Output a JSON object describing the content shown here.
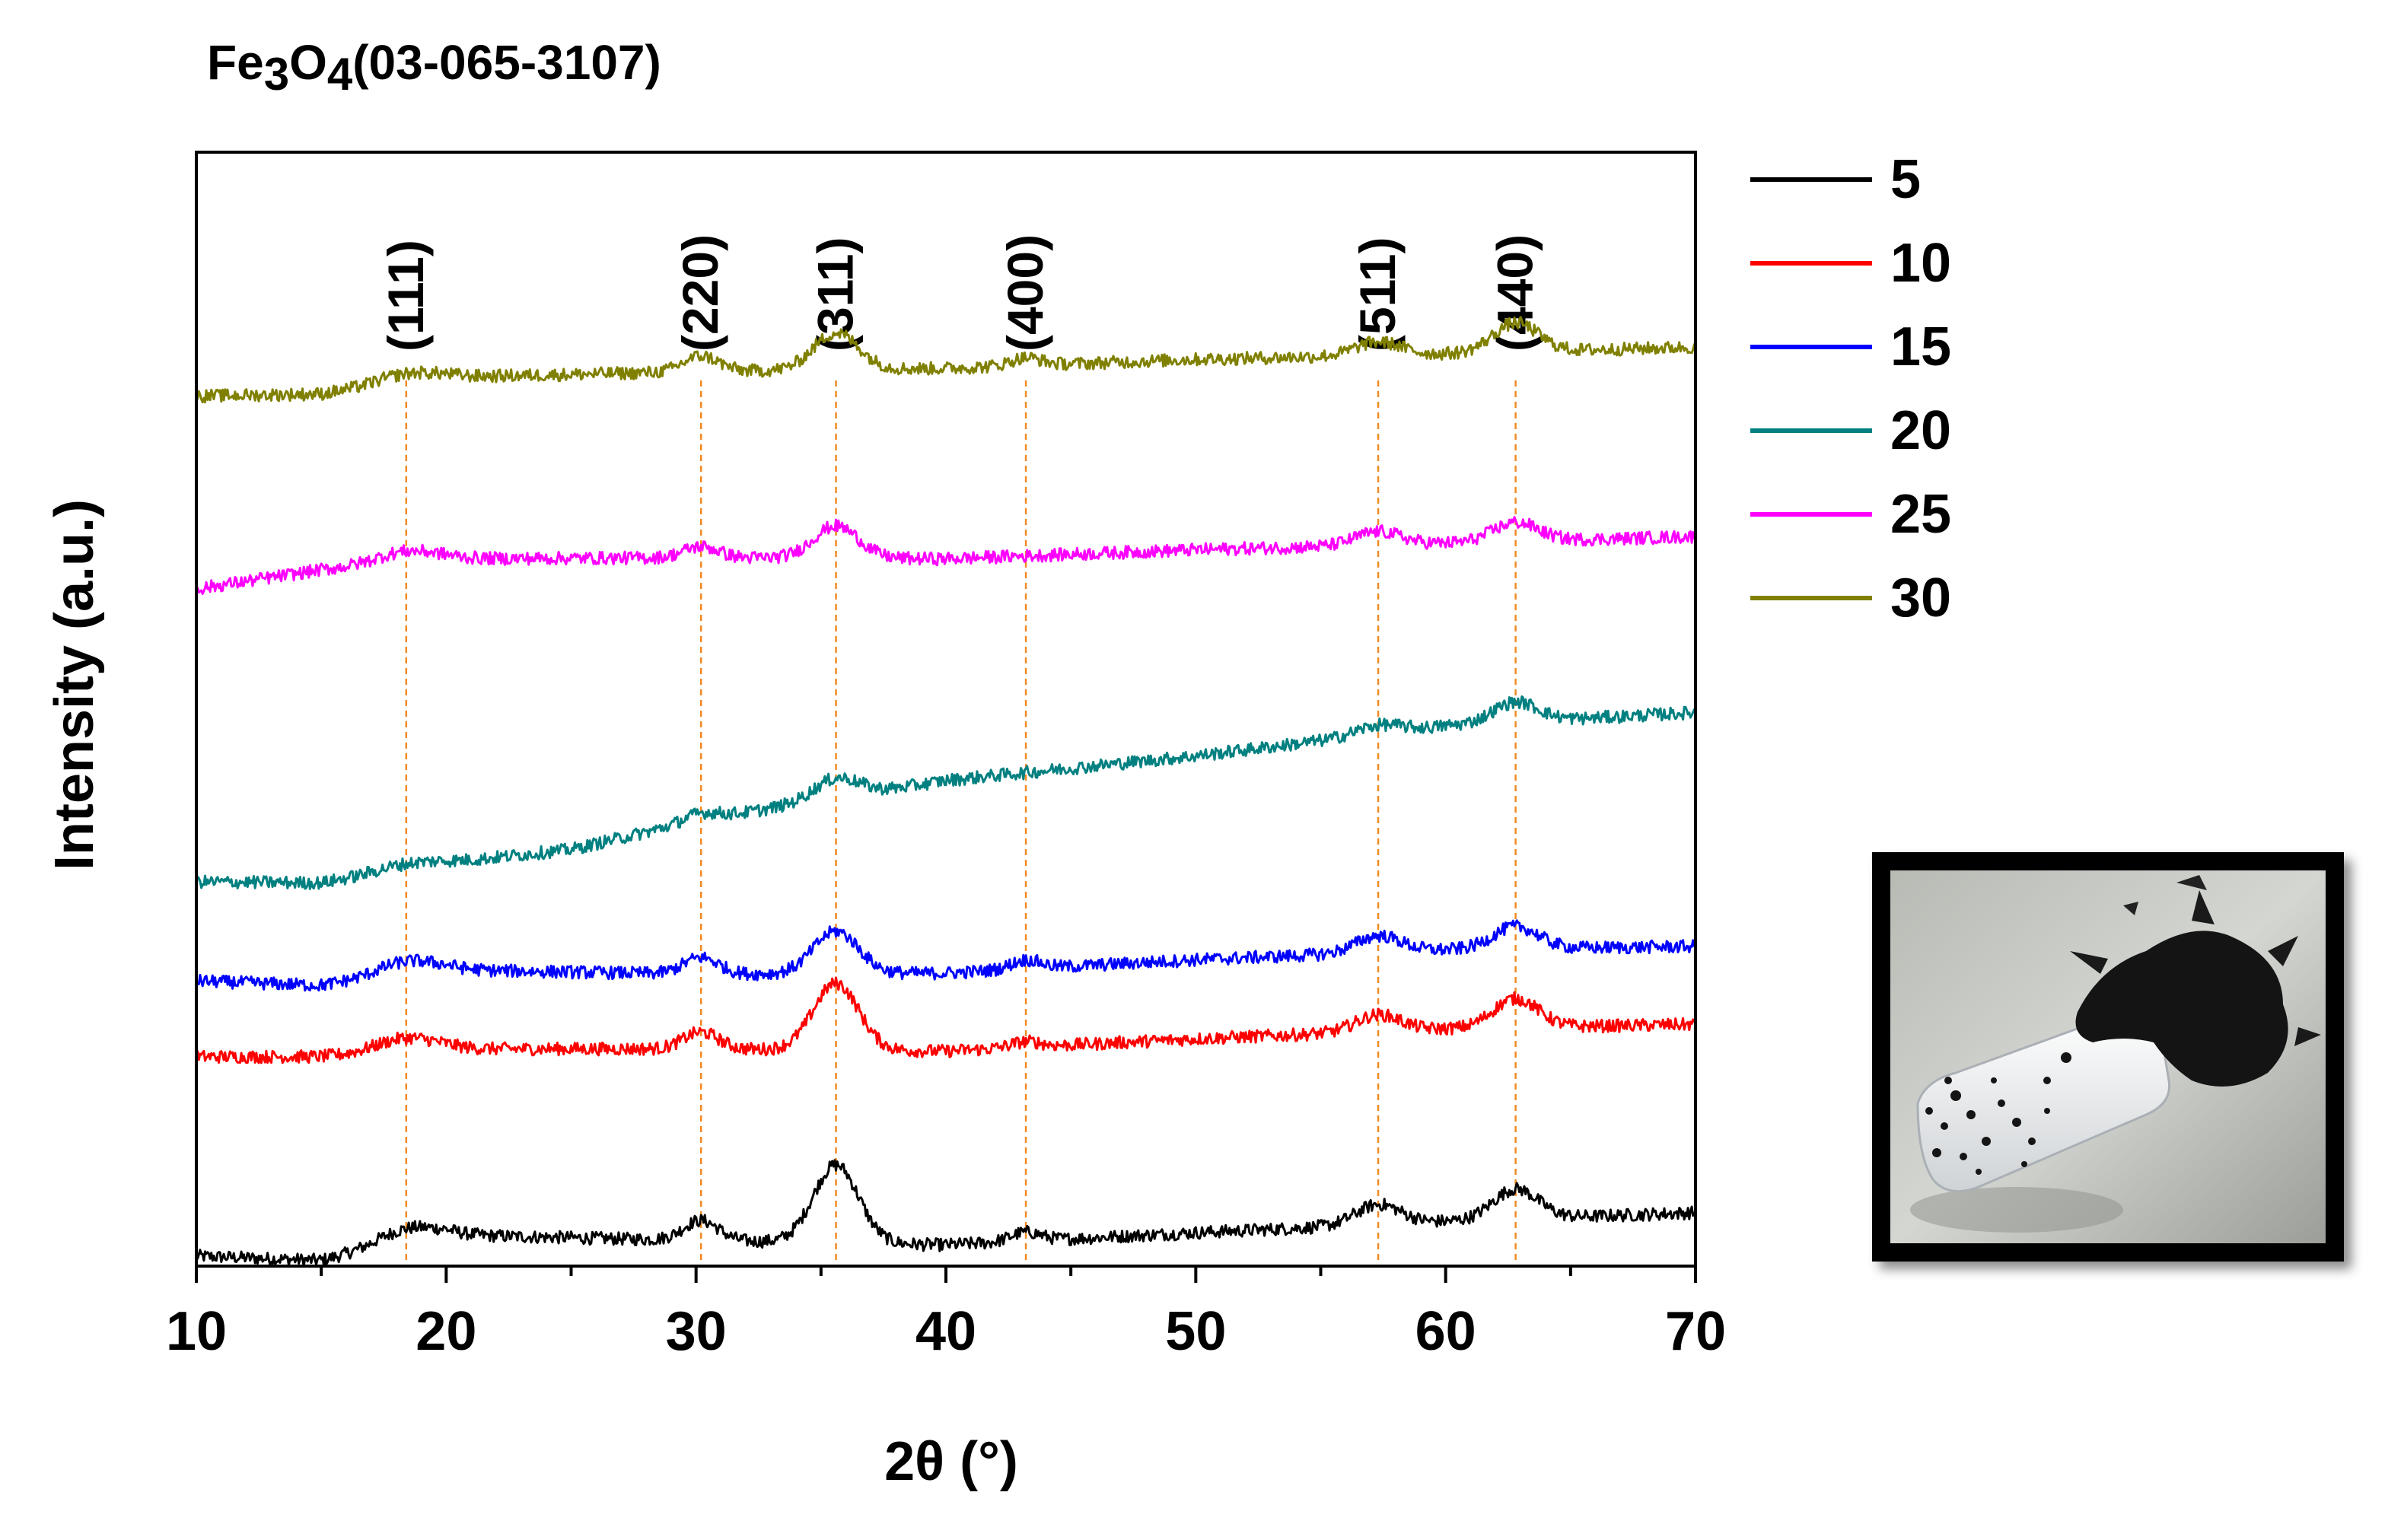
{
  "figure_title": {
    "base": "Fe",
    "sub1": "3",
    "mid": "O",
    "sub2": "4",
    "suffix": "(03-065-3107)"
  },
  "chart_data": {
    "type": "line",
    "title": "Fe3O4(03-065-3107)",
    "xlabel": "2θ (°)",
    "ylabel": "Intensity (a.u.)",
    "xlim": [
      10,
      70
    ],
    "xticks": [
      10,
      20,
      30,
      40,
      50,
      60,
      70
    ],
    "legend_position": "right",
    "grid": false,
    "reference_peaks": [
      {
        "label": "(111)",
        "two_theta": 18.4
      },
      {
        "label": "(220)",
        "two_theta": 30.2
      },
      {
        "label": "(311)",
        "two_theta": 35.6
      },
      {
        "label": "(400)",
        "two_theta": 43.2
      },
      {
        "label": "(511)",
        "two_theta": 57.3
      },
      {
        "label": "(440)",
        "two_theta": 62.8
      }
    ],
    "series": [
      {
        "name": "5",
        "color": "#000000",
        "baseline": [
          [
            10,
            0.9
          ],
          [
            15,
            0.5
          ],
          [
            20,
            2.8
          ],
          [
            30,
            2.3
          ],
          [
            40,
            1.9
          ],
          [
            50,
            3.0
          ],
          [
            60,
            4.0
          ],
          [
            70,
            4.8
          ]
        ],
        "peaks": [
          [
            18.4,
            1.3,
            1.2
          ],
          [
            30.2,
            1.8,
            0.7
          ],
          [
            35.6,
            7.0,
            0.9
          ],
          [
            43.2,
            0.8,
            0.6
          ],
          [
            57.3,
            1.8,
            0.9
          ],
          [
            62.8,
            2.7,
            0.9
          ]
        ]
      },
      {
        "name": "10",
        "color": "#ff0000",
        "baseline": [
          [
            10,
            18.8
          ],
          [
            15,
            18.8
          ],
          [
            20,
            19.5
          ],
          [
            30,
            19.5
          ],
          [
            40,
            19.3
          ],
          [
            50,
            20.4
          ],
          [
            60,
            21.3
          ],
          [
            70,
            21.7
          ]
        ],
        "peaks": [
          [
            18.4,
            1.2,
            1.2
          ],
          [
            30.2,
            1.5,
            0.7
          ],
          [
            35.6,
            6.0,
            0.9
          ],
          [
            43.2,
            0.5,
            0.6
          ],
          [
            57.3,
            1.5,
            0.9
          ],
          [
            62.8,
            2.6,
            0.9
          ]
        ]
      },
      {
        "name": "15",
        "color": "#0000ff",
        "baseline": [
          [
            10,
            25.6
          ],
          [
            15,
            25.2
          ],
          [
            20,
            26.6
          ],
          [
            30,
            26.2
          ],
          [
            40,
            26.3
          ],
          [
            50,
            27.5
          ],
          [
            60,
            28.4
          ],
          [
            70,
            28.7
          ]
        ],
        "peaks": [
          [
            18.4,
            1.2,
            1.2
          ],
          [
            30.2,
            1.5,
            0.7
          ],
          [
            35.6,
            3.8,
            0.9
          ],
          [
            43.2,
            0.8,
            0.6
          ],
          [
            57.3,
            1.5,
            0.9
          ],
          [
            62.8,
            2.0,
            0.9
          ]
        ]
      },
      {
        "name": "20",
        "color": "#008080",
        "baseline": [
          [
            10,
            34.5
          ],
          [
            15,
            34.4
          ],
          [
            20,
            36.2
          ],
          [
            25,
            37.4
          ],
          [
            30,
            40.0
          ],
          [
            35,
            41.8
          ],
          [
            40,
            43.6
          ],
          [
            50,
            45.8
          ],
          [
            60,
            48.5
          ],
          [
            70,
            49.7
          ]
        ],
        "peaks": [
          [
            18.4,
            0.5,
            1.2
          ],
          [
            30.2,
            0.6,
            0.7
          ],
          [
            35.6,
            1.8,
            0.9
          ],
          [
            57.3,
            0.8,
            0.9
          ],
          [
            62.8,
            1.8,
            0.9
          ]
        ]
      },
      {
        "name": "25",
        "color": "#ff00ff",
        "baseline": [
          [
            10,
            60.8
          ],
          [
            15,
            62.5
          ],
          [
            20,
            63.5
          ],
          [
            30,
            63.6
          ],
          [
            40,
            63.5
          ],
          [
            50,
            64.3
          ],
          [
            60,
            64.9
          ],
          [
            70,
            65.5
          ]
        ],
        "peaks": [
          [
            18.4,
            1.0,
            1.2
          ],
          [
            30.2,
            1.0,
            0.7
          ],
          [
            35.6,
            2.9,
            0.9
          ],
          [
            57.3,
            1.2,
            0.9
          ],
          [
            62.8,
            1.7,
            0.9
          ]
        ]
      },
      {
        "name": "30",
        "color": "#808000",
        "baseline": [
          [
            10,
            78.1
          ],
          [
            15,
            78.3
          ],
          [
            20,
            79.8
          ],
          [
            30,
            80.3
          ],
          [
            40,
            80.6
          ],
          [
            50,
            81.4
          ],
          [
            60,
            81.9
          ],
          [
            70,
            82.5
          ]
        ],
        "peaks": [
          [
            18.4,
            0.8,
            1.2
          ],
          [
            30.2,
            1.4,
            0.7
          ],
          [
            35.6,
            3.3,
            0.9
          ],
          [
            43.2,
            0.7,
            0.6
          ],
          [
            57.3,
            1.2,
            0.9
          ],
          [
            62.8,
            2.6,
            0.9
          ]
        ]
      }
    ]
  },
  "photo": {
    "description_icon": "magnet-with-black-powder-photo"
  }
}
